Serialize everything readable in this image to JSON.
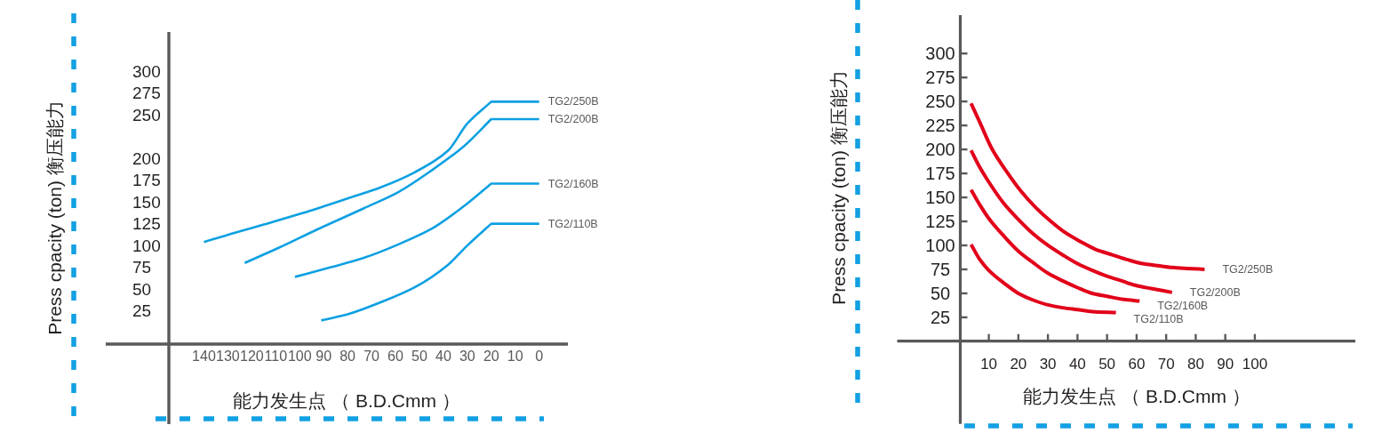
{
  "chart_data": [
    {
      "type": "line",
      "xlabel": "能力发生点 （ B.D.Cmm ）",
      "ylabel": "Press cpacity (ton) 衡压能力",
      "xlim": [
        181,
        -12
      ],
      "xticks": [
        140,
        130,
        120,
        110,
        100,
        90,
        80,
        70,
        60,
        50,
        40,
        30,
        20,
        10,
        0
      ],
      "ylim": [
        -105,
        345
      ],
      "yticks": [
        25,
        50,
        75,
        100,
        125,
        150,
        175,
        200,
        250,
        275,
        300
      ],
      "series": [
        {
          "name": "TG2/250B",
          "color": "#0ca0e2",
          "x": [
            140,
            129,
            115,
            99,
            80,
            66,
            52,
            38,
            30,
            20,
            0
          ],
          "values": [
            104,
            113,
            124,
            137,
            154,
            167,
            184,
            209,
            240,
            265,
            265
          ]
        },
        {
          "name": "TG2/200B",
          "color": "#0ca0e2",
          "x": [
            123,
            109,
            93,
            73,
            59,
            45,
            31,
            20,
            0
          ],
          "values": [
            80,
            97,
            118,
            143,
            161,
            186,
            215,
            245,
            245
          ]
        },
        {
          "name": "TG2/160B",
          "color": "#0ca0e2",
          "x": [
            102,
            87,
            73,
            59,
            45,
            31,
            20,
            0
          ],
          "values": [
            64,
            75,
            86,
            101,
            119,
            146,
            171,
            171
          ]
        },
        {
          "name": "TG2/110B",
          "color": "#0ca0e2",
          "x": [
            91,
            80,
            66,
            52,
            38,
            30,
            20,
            0
          ],
          "values": [
            14,
            21,
            35,
            52,
            78,
            100,
            125,
            125
          ]
        }
      ]
    },
    {
      "type": "line",
      "xlabel": "能力发生点 （ B.D.Cmm ）",
      "ylabel": "Press cpacity (ton) 衡压能力",
      "xlim": [
        -21,
        134
      ],
      "xticks": [
        10,
        20,
        30,
        40,
        50,
        60,
        70,
        80,
        90,
        100
      ],
      "ylim": [
        -86,
        340
      ],
      "yticks": [
        25,
        50,
        75,
        100,
        125,
        150,
        175,
        200,
        225,
        250,
        275,
        300
      ],
      "series": [
        {
          "name": "TG2/250B",
          "color": "#e2001a",
          "x": [
            4,
            7,
            11,
            16,
            21,
            26,
            31,
            36,
            41,
            46,
            52,
            57,
            62,
            67,
            72,
            77,
            83
          ],
          "values": [
            248,
            228,
            201,
            177,
            156,
            139,
            125,
            113,
            104,
            96,
            90,
            85,
            81,
            79,
            77,
            76,
            75
          ]
        },
        {
          "name": "TG2/200B",
          "color": "#e2001a",
          "x": [
            4,
            7,
            10,
            15,
            20,
            25,
            30,
            35,
            40,
            45,
            50,
            55,
            60,
            65,
            72
          ],
          "values": [
            199,
            181,
            166,
            144,
            127,
            112,
            100,
            90,
            81,
            74,
            68,
            63,
            58,
            55,
            51
          ]
        },
        {
          "name": "TG2/160B",
          "color": "#e2001a",
          "x": [
            4,
            7,
            10,
            15,
            20,
            25,
            30,
            35,
            40,
            45,
            50,
            55,
            61
          ],
          "values": [
            158,
            142,
            128,
            110,
            94,
            82,
            71,
            63,
            56,
            50,
            47,
            44,
            42
          ]
        },
        {
          "name": "TG2/110B",
          "color": "#e2001a",
          "x": [
            4,
            7,
            10,
            15,
            20,
            25,
            30,
            35,
            40,
            45,
            53
          ],
          "values": [
            101,
            85,
            74,
            61,
            50,
            43,
            38,
            35,
            33,
            31,
            30
          ]
        }
      ]
    }
  ]
}
